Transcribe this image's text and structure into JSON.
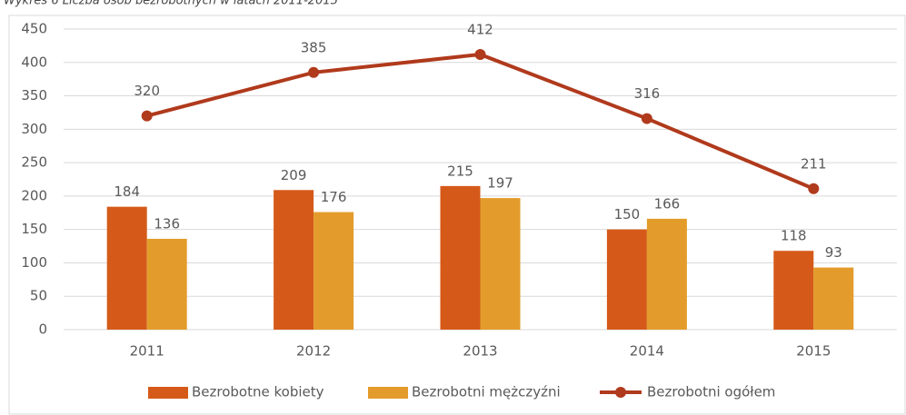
{
  "chart_data": {
    "type": "bar",
    "title": "Wykres 6 Liczba osób bezrobotnych w latach 2011-2015",
    "categories": [
      "2011",
      "2012",
      "2013",
      "2014",
      "2015"
    ],
    "series": [
      {
        "name": "Bezrobotne kobiety",
        "color": "#d55a19",
        "values": [
          184,
          209,
          215,
          150,
          118
        ]
      },
      {
        "name": "Bezrobotni mężczyźni",
        "color": "#e39c2b",
        "values": [
          136,
          176,
          197,
          166,
          93
        ]
      },
      {
        "name": "Bezrobotni ogółem",
        "type": "line",
        "color": "#b03a1c",
        "values": [
          320,
          385,
          412,
          316,
          211
        ]
      }
    ],
    "ylim": [
      0,
      450
    ],
    "yticks": [
      0,
      50,
      100,
      150,
      200,
      250,
      300,
      350,
      400,
      450
    ],
    "grid": true,
    "legend": "bottom"
  }
}
